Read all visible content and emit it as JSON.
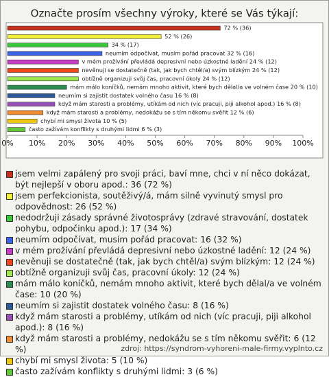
{
  "chart_data": {
    "type": "bar",
    "orientation": "horizontal",
    "title": "Označte prosím všechny výroky, které se Vás týkají:",
    "categories": [
      "jsem velmi zapálený pro svoji práci, baví mne, chci v ní něco dokázat, být nejlepší v oboru apod.: 36 (72 %)",
      "jsem perfekcionista, soutěživý/á, mám silně vyvinutý smysl pro odpovědnost: 26 (52 %)",
      "nedodržuji zásady správné životosprávy (zdravé stravování, dostatek pohybu, odpočinku apod.): 17 (34 %)",
      "neumím odpočívat, musím pořád pracovat: 16 (32 %)",
      "v mém prožívání převládá depresivní nebo úzkostné ladění: 12 (24 %)",
      "nevěnuji se dostatečně (tak, jak bych chtěl/a) svým blízkým: 12 (24 %)",
      "obtížně organizuji svůj čas, pracovní úkoly: 12 (24 %)",
      "mám málo koníčků, nemám mnoho aktivit, které bych dělal/a ve volném čase: 10 (20 %)",
      "neumím si zajistit dostatek volného času: 8 (16 %)",
      "když mám starosti a problémy, utíkám od nich (víc pracuji, piji alkohol apod.): 8 (16 %)",
      "když mám starosti a problémy, nedokážu se s tím někomu svěřit: 6 (12 %)",
      "chybí mi smysl života: 5 (10 %)",
      "často zažívám konflikty s druhými lidmi: 3 (6 %)"
    ],
    "values": [
      72,
      52,
      34,
      32,
      24,
      24,
      24,
      20,
      16,
      16,
      12,
      10,
      6
    ],
    "value_labels": [
      "72 % (36)",
      "52 % (26)",
      "34 % (17)",
      "neumím odpočívat, musím pořád pracovat 32 % (16)",
      "v mém prožívání převládá depresivní nebo úzkostné ladění 24 % (12)",
      "nevěnuji se dostatečně (tak, jak bych chtěl/a) svým blízkým 24 % (12)",
      "obtížně organizuji svůj čas, pracovní úkoly 24 % (12)",
      "mám málo koníčků, nemám mnoho aktivit, které bych dělal/a ve volném čase 20 % (10)",
      "neumím si zajistit dostatek volného času 16 % (8)",
      "když mám starosti a problémy, utíkám od nich (víc pracuji, piji alkohol apod.) 16 % (8)",
      "když mám starosti a problémy, nedokážu se s tím někomu svěřit 12 % (6)",
      "chybí mi smysl života 10 % (5)",
      "často zažívám konflikty s druhými lidmi 6 % (3)"
    ],
    "colors": [
      "#c8321e",
      "#f2ee3c",
      "#3cc83c",
      "#3c64e6",
      "#c83cc8",
      "#f0461e",
      "#a0e650",
      "#2d8c50",
      "#2d5a96",
      "#9650b4",
      "#f08c32",
      "#f0c814",
      "#64c83c"
    ],
    "xlim": [
      0,
      100
    ],
    "xticks": [
      {
        "value": 0,
        "label": "0%"
      },
      {
        "value": 10,
        "label": "10%"
      },
      {
        "value": 20,
        "label": "20%"
      },
      {
        "value": 30,
        "label": "30%"
      },
      {
        "value": 40,
        "label": "40%"
      },
      {
        "value": 50,
        "label": "50%"
      },
      {
        "value": 60,
        "label": "60%"
      },
      {
        "value": 70,
        "label": "70%"
      },
      {
        "value": 80,
        "label": "80%"
      },
      {
        "value": 90,
        "label": "90%"
      },
      {
        "value": 100,
        "label": "100%"
      }
    ],
    "source": "zdroj: https://syndrom-vyhoreni-male-firmy.vyplnto.cz"
  }
}
